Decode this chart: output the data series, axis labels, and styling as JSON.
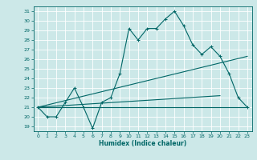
{
  "xlabel": "Humidex (Indice chaleur)",
  "bg_color": "#cce8e8",
  "grid_color": "#ffffff",
  "line_color": "#006666",
  "xlim": [
    -0.5,
    23.5
  ],
  "ylim": [
    18.5,
    31.5
  ],
  "xticks": [
    0,
    1,
    2,
    3,
    4,
    5,
    6,
    7,
    8,
    9,
    10,
    11,
    12,
    13,
    14,
    15,
    16,
    17,
    18,
    19,
    20,
    21,
    22,
    23
  ],
  "yticks": [
    19,
    20,
    21,
    22,
    23,
    24,
    25,
    26,
    27,
    28,
    29,
    30,
    31
  ],
  "line1_x": [
    0,
    1,
    2,
    3,
    4,
    5,
    6,
    7,
    8,
    9,
    10,
    11,
    12,
    13,
    14,
    15,
    16,
    17,
    18,
    19,
    20,
    21,
    22,
    23
  ],
  "line1_y": [
    21,
    20,
    20,
    21.5,
    23,
    21,
    18.8,
    21.5,
    22,
    24.5,
    29.2,
    28,
    29.2,
    29.2,
    30.2,
    31,
    29.5,
    27.5,
    26.5,
    27.3,
    26.3,
    24.5,
    22,
    21
  ],
  "line2_x": [
    0,
    23
  ],
  "line2_y": [
    21,
    26.3
  ],
  "line3_x": [
    0,
    23
  ],
  "line3_y": [
    21,
    21
  ],
  "line4_x": [
    0,
    20
  ],
  "line4_y": [
    21,
    22.2
  ],
  "marker": "+",
  "markersize": 3,
  "linewidth": 0.8
}
